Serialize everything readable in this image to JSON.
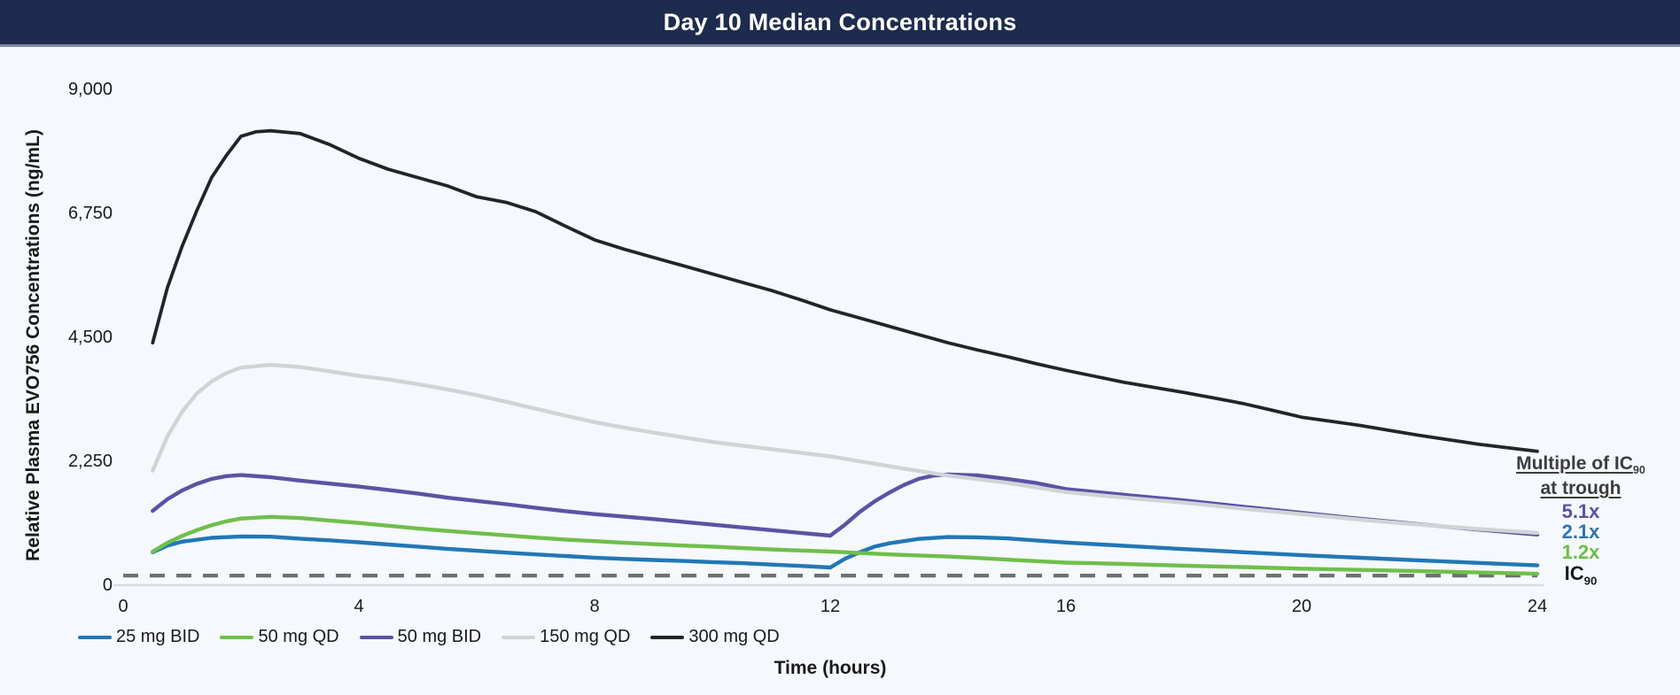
{
  "header": {
    "title": "Day 10 Median Concentrations"
  },
  "chart_data": {
    "type": "line",
    "title": "Day 10 Median Concentrations",
    "xlabel": "Time (hours)",
    "ylabel": "Relative Plasma EVO756 Concentrations (ng/mL)",
    "xlim": [
      0,
      24
    ],
    "ylim": [
      0,
      9000
    ],
    "x_tick_labels": [
      "0",
      "4",
      "8",
      "12",
      "16",
      "20",
      "24"
    ],
    "y_tick_labels": [
      "9,000",
      "6,750",
      "4,500",
      "2,250",
      "0"
    ],
    "y_tick_values": [
      9000,
      6750,
      4500,
      2250,
      0
    ],
    "grid": false,
    "legend_position": "bottom-left",
    "background_color": "#f5f8fc",
    "ic90_line": {
      "value": 175,
      "color": "#707070",
      "style": "dashed"
    },
    "series": [
      {
        "name": "25 mg BID",
        "color": "#2277b5",
        "points": [
          [
            0.5,
            600
          ],
          [
            0.75,
            720
          ],
          [
            1,
            790
          ],
          [
            1.5,
            860
          ],
          [
            2,
            885
          ],
          [
            2.5,
            880
          ],
          [
            3,
            845
          ],
          [
            3.5,
            815
          ],
          [
            4,
            780
          ],
          [
            4.5,
            740
          ],
          [
            5,
            700
          ],
          [
            5.5,
            660
          ],
          [
            6,
            625
          ],
          [
            6.5,
            592
          ],
          [
            7,
            560
          ],
          [
            7.5,
            530
          ],
          [
            8,
            500
          ],
          [
            8.5,
            478
          ],
          [
            9,
            458
          ],
          [
            9.5,
            440
          ],
          [
            10,
            420
          ],
          [
            10.5,
            400
          ],
          [
            11,
            375
          ],
          [
            11.5,
            350
          ],
          [
            12,
            322
          ],
          [
            12.25,
            480
          ],
          [
            12.5,
            600
          ],
          [
            12.75,
            700
          ],
          [
            13,
            760
          ],
          [
            13.5,
            840
          ],
          [
            14,
            875
          ],
          [
            14.5,
            870
          ],
          [
            15,
            850
          ],
          [
            16,
            775
          ],
          [
            17,
            715
          ],
          [
            18,
            655
          ],
          [
            19,
            600
          ],
          [
            20,
            545
          ],
          [
            21,
            498
          ],
          [
            22,
            452
          ],
          [
            23,
            405
          ],
          [
            24,
            360
          ]
        ]
      },
      {
        "name": "50 mg QD",
        "color": "#6fbf4b",
        "points": [
          [
            0.5,
            610
          ],
          [
            0.75,
            770
          ],
          [
            1,
            895
          ],
          [
            1.25,
            1000
          ],
          [
            1.5,
            1090
          ],
          [
            1.75,
            1160
          ],
          [
            2,
            1210
          ],
          [
            2.5,
            1240
          ],
          [
            3,
            1220
          ],
          [
            3.5,
            1175
          ],
          [
            4,
            1130
          ],
          [
            4.5,
            1080
          ],
          [
            5,
            1030
          ],
          [
            5.5,
            985
          ],
          [
            6,
            945
          ],
          [
            6.5,
            905
          ],
          [
            7,
            865
          ],
          [
            7.5,
            830
          ],
          [
            8,
            800
          ],
          [
            8.5,
            770
          ],
          [
            9,
            745
          ],
          [
            9.5,
            720
          ],
          [
            10,
            700
          ],
          [
            10.5,
            675
          ],
          [
            11,
            650
          ],
          [
            11.5,
            630
          ],
          [
            12,
            610
          ],
          [
            12.5,
            585
          ],
          [
            13,
            560
          ],
          [
            13.5,
            540
          ],
          [
            14,
            520
          ],
          [
            14.5,
            495
          ],
          [
            15,
            465
          ],
          [
            15.5,
            437
          ],
          [
            16,
            410
          ],
          [
            16.5,
            398
          ],
          [
            17,
            385
          ],
          [
            18,
            355
          ],
          [
            19,
            330
          ],
          [
            20,
            300
          ],
          [
            21,
            278
          ],
          [
            22,
            255
          ],
          [
            23,
            232
          ],
          [
            24,
            208
          ]
        ]
      },
      {
        "name": "50 mg BID",
        "color": "#5b53a4",
        "points": [
          [
            0.5,
            1350
          ],
          [
            0.75,
            1560
          ],
          [
            1,
            1720
          ],
          [
            1.25,
            1840
          ],
          [
            1.5,
            1930
          ],
          [
            1.75,
            1980
          ],
          [
            2,
            2000
          ],
          [
            2.5,
            1960
          ],
          [
            3,
            1900
          ],
          [
            3.5,
            1845
          ],
          [
            4,
            1790
          ],
          [
            4.5,
            1730
          ],
          [
            5,
            1665
          ],
          [
            5.5,
            1590
          ],
          [
            6,
            1530
          ],
          [
            6.5,
            1470
          ],
          [
            7,
            1405
          ],
          [
            7.5,
            1345
          ],
          [
            8,
            1290
          ],
          [
            8.5,
            1245
          ],
          [
            9,
            1200
          ],
          [
            9.5,
            1150
          ],
          [
            10,
            1100
          ],
          [
            10.5,
            1050
          ],
          [
            11,
            1000
          ],
          [
            11.5,
            950
          ],
          [
            12,
            900
          ],
          [
            12.25,
            1100
          ],
          [
            12.5,
            1330
          ],
          [
            12.75,
            1520
          ],
          [
            13,
            1680
          ],
          [
            13.25,
            1820
          ],
          [
            13.5,
            1930
          ],
          [
            13.75,
            1990
          ],
          [
            14,
            2010
          ],
          [
            14.5,
            1995
          ],
          [
            15,
            1930
          ],
          [
            15.5,
            1855
          ],
          [
            16,
            1745
          ],
          [
            17,
            1640
          ],
          [
            18,
            1540
          ],
          [
            19,
            1425
          ],
          [
            20,
            1315
          ],
          [
            21,
            1205
          ],
          [
            22,
            1105
          ],
          [
            23,
            1010
          ],
          [
            24,
            920
          ]
        ]
      },
      {
        "name": "150 mg QD",
        "color": "#d2d3d6",
        "points": [
          [
            0.5,
            2080
          ],
          [
            0.75,
            2700
          ],
          [
            1,
            3150
          ],
          [
            1.25,
            3480
          ],
          [
            1.5,
            3700
          ],
          [
            1.75,
            3850
          ],
          [
            2,
            3950
          ],
          [
            2.5,
            4000
          ],
          [
            3,
            3960
          ],
          [
            3.5,
            3885
          ],
          [
            4,
            3800
          ],
          [
            4.5,
            3735
          ],
          [
            5,
            3650
          ],
          [
            5.5,
            3555
          ],
          [
            6,
            3450
          ],
          [
            6.5,
            3330
          ],
          [
            7,
            3205
          ],
          [
            7.5,
            3080
          ],
          [
            8,
            2960
          ],
          [
            8.5,
            2860
          ],
          [
            9,
            2770
          ],
          [
            9.5,
            2685
          ],
          [
            10,
            2600
          ],
          [
            10.5,
            2535
          ],
          [
            11,
            2470
          ],
          [
            11.5,
            2405
          ],
          [
            12,
            2340
          ],
          [
            12.5,
            2250
          ],
          [
            13,
            2160
          ],
          [
            13.5,
            2075
          ],
          [
            14,
            1990
          ],
          [
            14.5,
            1925
          ],
          [
            15,
            1860
          ],
          [
            15.5,
            1775
          ],
          [
            16,
            1690
          ],
          [
            16.5,
            1640
          ],
          [
            17,
            1590
          ],
          [
            17.5,
            1545
          ],
          [
            18,
            1500
          ],
          [
            18.5,
            1445
          ],
          [
            19,
            1390
          ],
          [
            19.5,
            1340
          ],
          [
            20,
            1290
          ],
          [
            20.5,
            1240
          ],
          [
            21,
            1190
          ],
          [
            21.5,
            1145
          ],
          [
            22,
            1100
          ],
          [
            22.5,
            1060
          ],
          [
            23,
            1020
          ],
          [
            23.5,
            985
          ],
          [
            24,
            950
          ]
        ]
      },
      {
        "name": "300 mg QD",
        "color": "#212529",
        "points": [
          [
            0.5,
            4400
          ],
          [
            0.75,
            5400
          ],
          [
            1,
            6150
          ],
          [
            1.25,
            6800
          ],
          [
            1.5,
            7400
          ],
          [
            1.75,
            7800
          ],
          [
            2,
            8150
          ],
          [
            2.25,
            8230
          ],
          [
            2.5,
            8250
          ],
          [
            3,
            8200
          ],
          [
            3.5,
            8000
          ],
          [
            4,
            7750
          ],
          [
            4.5,
            7550
          ],
          [
            5,
            7400
          ],
          [
            5.5,
            7250
          ],
          [
            6,
            7050
          ],
          [
            6.5,
            6950
          ],
          [
            7,
            6780
          ],
          [
            7.5,
            6520
          ],
          [
            8,
            6270
          ],
          [
            8.5,
            6100
          ],
          [
            9,
            5950
          ],
          [
            9.5,
            5800
          ],
          [
            10,
            5650
          ],
          [
            10.5,
            5500
          ],
          [
            11,
            5350
          ],
          [
            11.5,
            5180
          ],
          [
            12,
            5000
          ],
          [
            12.5,
            4850
          ],
          [
            13,
            4700
          ],
          [
            13.5,
            4550
          ],
          [
            14,
            4400
          ],
          [
            14.5,
            4270
          ],
          [
            15,
            4150
          ],
          [
            15.5,
            4020
          ],
          [
            16,
            3900
          ],
          [
            16.5,
            3790
          ],
          [
            17,
            3680
          ],
          [
            17.5,
            3590
          ],
          [
            18,
            3500
          ],
          [
            18.5,
            3400
          ],
          [
            19,
            3300
          ],
          [
            19.5,
            3175
          ],
          [
            20,
            3050
          ],
          [
            20.5,
            2975
          ],
          [
            21,
            2900
          ],
          [
            21.5,
            2810
          ],
          [
            22,
            2720
          ],
          [
            22.5,
            2640
          ],
          [
            23,
            2560
          ],
          [
            23.5,
            2495
          ],
          [
            24,
            2430
          ]
        ]
      }
    ]
  },
  "annotation": {
    "heading_prefix": "Multiple of IC",
    "heading_sub": "90",
    "heading_line2": "at trough",
    "text_color": "#3d3d3d",
    "entries": [
      {
        "label": "5.1x",
        "color": "#5b53a4"
      },
      {
        "label": "2.1x",
        "color": "#2e74b5"
      },
      {
        "label": "1.2x",
        "color": "#6cbf45"
      }
    ],
    "ic_prefix": "IC",
    "ic_sub": "90",
    "ic_color": "#1a1a1a"
  },
  "colors": {
    "header_bg": "#1d2c4e",
    "header_border": "#7b87a4",
    "axis_line": "#d9dde2",
    "tick_text": "#1a1a1a"
  }
}
